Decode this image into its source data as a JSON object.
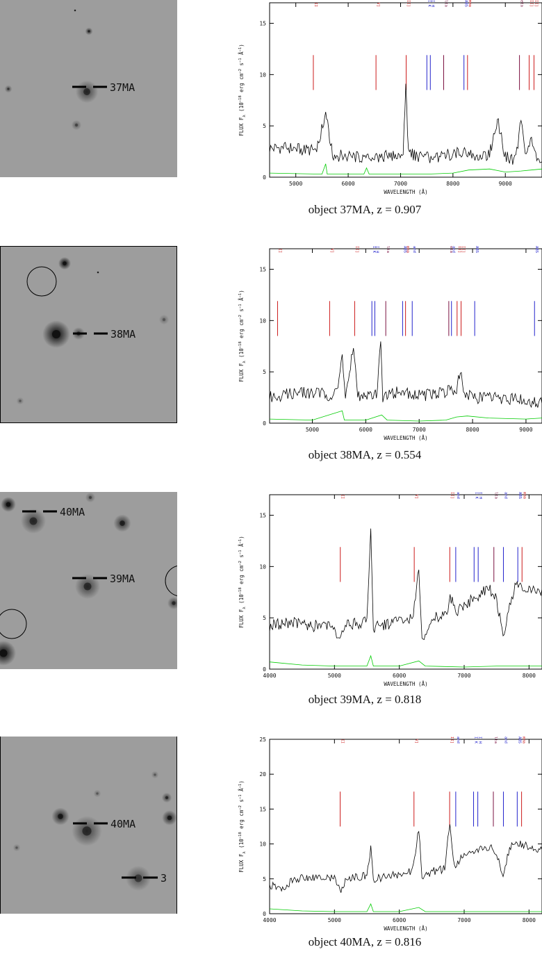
{
  "colors": {
    "emission": "#cc1a1a",
    "absorption": "#2222cc",
    "balmer": "#7a1040",
    "noise": "#00cc00",
    "spectrum": "#000000"
  },
  "panels": [
    {
      "label": "37MA",
      "caption": "object 37MA, z = 0.907",
      "stamp": {
        "markers": [
          {
            "text": "37MA"
          }
        ],
        "blobs": [
          [
            125,
            132,
            9,
            0.6
          ],
          [
            128,
            45,
            3,
            0.7
          ],
          [
            108,
            15,
            1,
            1.0
          ],
          [
            12,
            128,
            3,
            0.5
          ],
          [
            110,
            180,
            4,
            0.4
          ]
        ],
        "circles": []
      },
      "chart_data": {
        "type": "line",
        "xlabel": "WAVELENGTH (Å)",
        "xlim": [
          4500,
          9700
        ],
        "ylim": [
          0,
          17
        ],
        "xticks": [
          5000,
          6000,
          7000,
          8000,
          9000
        ],
        "yticks": [
          0,
          5,
          10,
          15
        ],
        "series": [
          {
            "role": "spectrum",
            "x": [
              4500,
              4800,
              5100,
              5400,
              5570,
              5700,
              6000,
              6300,
              6600,
              6900,
              7050,
              7100,
              7150,
              7300,
              7500,
              7700,
              7900,
              8100,
              8300,
              8500,
              8700,
              8850,
              9000,
              9200,
              9300,
              9400,
              9500,
              9600,
              9700
            ],
            "y": [
              2.8,
              2.9,
              2.7,
              2.6,
              6.2,
              2.2,
              2.0,
              1.9,
              2.0,
              2.1,
              2.4,
              9.0,
              2.3,
              2.1,
              1.9,
              1.8,
              2.2,
              2.4,
              2.3,
              2.1,
              2.2,
              5.6,
              2.0,
              1.7,
              5.4,
              1.9,
              3.7,
              1.6,
              1.5
            ]
          },
          {
            "role": "noise",
            "x": [
              4500,
              5500,
              5570,
              5600,
              6300,
              6350,
              6400,
              7000,
              7500,
              8000,
              8300,
              8700,
              9000,
              9300,
              9700
            ],
            "y": [
              0.4,
              0.3,
              1.3,
              0.3,
              0.3,
              0.9,
              0.3,
              0.3,
              0.3,
              0.4,
              0.7,
              0.8,
              0.5,
              0.6,
              0.8
            ]
          }
        ],
        "lines": [
          {
            "name": "MG II",
            "x": 5335,
            "kind": "emission"
          },
          {
            "name": "[NE V]",
            "x": 6531,
            "kind": "emission"
          },
          {
            "name": "[O II]",
            "x": 7107,
            "kind": "emission"
          },
          {
            "name": "CA II K",
            "x": 7502,
            "kind": "absorption"
          },
          {
            "name": "CA II H",
            "x": 7568,
            "kind": "absorption"
          },
          {
            "name": "H-delta",
            "x": 7823,
            "kind": "balmer"
          },
          {
            "name": "CH G ABS",
            "x": 8210,
            "kind": "absorption"
          },
          {
            "name": "H-gamma",
            "x": 8278,
            "kind": "emission"
          },
          {
            "name": "H-beta",
            "x": 9270,
            "kind": "balmer"
          },
          {
            "name": "[O III]",
            "x": 9455,
            "kind": "emission"
          },
          {
            "name": "[O III]",
            "x": 9547,
            "kind": "emission"
          }
        ]
      }
    },
    {
      "label": "38MA",
      "caption": "object 38MA, z = 0.554",
      "stamp": {
        "markers": [
          {
            "text": "38MA"
          }
        ],
        "blobs": [
          [
            80,
            126,
            11,
            1.0
          ],
          [
            92,
            24,
            5,
            1.0
          ],
          [
            112,
            125,
            5,
            0.6
          ],
          [
            140,
            37,
            1,
            1.0
          ],
          [
            235,
            105,
            4,
            0.3
          ],
          [
            28,
            222,
            3,
            0.3
          ]
        ],
        "circles": [
          [
            59,
            50,
            21
          ]
        ]
      },
      "chart_data": {
        "type": "line",
        "xlabel": "WAVELENGTH (Å)",
        "xlim": [
          4200,
          9300
        ],
        "ylim": [
          0,
          17
        ],
        "xticks": [
          5000,
          6000,
          7000,
          8000,
          9000
        ],
        "yticks": [
          0,
          5,
          10,
          15
        ],
        "series": [
          {
            "role": "spectrum",
            "x": [
              4200,
              4500,
              4800,
              5100,
              5400,
              5500,
              5560,
              5620,
              5770,
              5850,
              6100,
              6200,
              6280,
              6320,
              6500,
              6800,
              7000,
              7300,
              7500,
              7700,
              7770,
              7850,
              8000,
              8200,
              8400,
              8600,
              8800,
              9000,
              9200,
              9300
            ],
            "y": [
              2.5,
              2.8,
              3.0,
              2.9,
              2.7,
              4.0,
              6.5,
              2.4,
              7.5,
              2.6,
              2.5,
              2.8,
              7.5,
              2.6,
              3.0,
              2.9,
              2.7,
              2.8,
              3.1,
              3.3,
              5.4,
              2.8,
              2.6,
              2.4,
              2.5,
              2.3,
              2.4,
              2.2,
              2.0,
              1.9
            ]
          },
          {
            "role": "noise",
            "x": [
              4200,
              5000,
              5560,
              5600,
              6000,
              6300,
              6400,
              7000,
              7500,
              7700,
              7900,
              8300,
              9000,
              9300
            ],
            "y": [
              0.4,
              0.3,
              1.2,
              0.3,
              0.3,
              0.8,
              0.3,
              0.2,
              0.3,
              0.6,
              0.7,
              0.5,
              0.4,
              0.5
            ]
          }
        ],
        "lines": [
          {
            "name": "MG II",
            "x": 4349,
            "kind": "emission"
          },
          {
            "name": "[NE V]",
            "x": 5324,
            "kind": "emission"
          },
          {
            "name": "[O II]",
            "x": 5793,
            "kind": "emission"
          },
          {
            "name": "CA II K",
            "x": 6115,
            "kind": "absorption"
          },
          {
            "name": "CA II H",
            "x": 6170,
            "kind": "absorption"
          },
          {
            "name": "H-delta",
            "x": 6375,
            "kind": "balmer"
          },
          {
            "name": "CH G ABS",
            "x": 6690,
            "kind": "absorption"
          },
          {
            "name": "H-gamma",
            "x": 6745,
            "kind": "emission"
          },
          {
            "name": "B-Band",
            "x": 6870,
            "kind": "absorption"
          },
          {
            "name": "H-beta",
            "x": 7555,
            "kind": "balmer"
          },
          {
            "name": "A-Band",
            "x": 7605,
            "kind": "absorption"
          },
          {
            "name": "[O III]",
            "x": 7710,
            "kind": "emission"
          },
          {
            "name": "[O III]",
            "x": 7785,
            "kind": "emission"
          },
          {
            "name": "MG I ABS",
            "x": 8040,
            "kind": "absorption"
          },
          {
            "name": "NA D ABS",
            "x": 9160,
            "kind": "absorption"
          }
        ]
      }
    },
    {
      "label": "39MA",
      "caption": "object 39MA, z = 0.818",
      "stamp": {
        "markers": [
          {
            "text": "40MA"
          },
          {
            "text": "39MA"
          }
        ],
        "blobs": [
          [
            126,
            136,
            10,
            0.6
          ],
          [
            48,
            42,
            10,
            0.6
          ],
          [
            12,
            18,
            6,
            1.0
          ],
          [
            176,
            45,
            7,
            0.7
          ],
          [
            5,
            232,
            10,
            1.0
          ],
          [
            250,
            160,
            5,
            0.6
          ],
          [
            130,
            8,
            4,
            0.4
          ]
        ],
        "circles": [
          [
            17,
            190,
            21
          ],
          [
            260,
            128,
            22
          ]
        ]
      },
      "chart_data": {
        "type": "line",
        "xlabel": "WAVELENGTH (Å)",
        "xlim": [
          4000,
          8200
        ],
        "ylim": [
          0,
          17
        ],
        "xticks": [
          4000,
          5000,
          6000,
          7000,
          8000
        ],
        "yticks": [
          0,
          5,
          10,
          15
        ],
        "series": [
          {
            "role": "spectrum",
            "x": [
              4000,
              4300,
              4600,
              4900,
              5100,
              5200,
              5500,
              5560,
              5600,
              5900,
              6200,
              6300,
              6350,
              6500,
              6700,
              6800,
              6900,
              7000,
              7200,
              7400,
              7500,
              7600,
              7700,
              7800,
              8000,
              8200
            ],
            "y": [
              4.2,
              4.6,
              4.3,
              4.1,
              3.0,
              4.4,
              4.5,
              14.0,
              4.0,
              4.6,
              4.9,
              9.5,
              2.5,
              4.8,
              5.4,
              7.0,
              5.5,
              6.2,
              7.2,
              7.8,
              6.8,
              3.0,
              6.5,
              8.2,
              7.6,
              7.8
            ]
          },
          {
            "role": "noise",
            "x": [
              4000,
              4500,
              5000,
              5500,
              5560,
              5600,
              6000,
              6300,
              6400,
              7000,
              7500,
              8000,
              8200
            ],
            "y": [
              0.7,
              0.4,
              0.3,
              0.3,
              1.3,
              0.3,
              0.3,
              0.8,
              0.3,
              0.2,
              0.3,
              0.3,
              0.3
            ]
          }
        ],
        "lines": [
          {
            "name": "MG II",
            "x": 5090,
            "kind": "emission"
          },
          {
            "name": "[NE V]",
            "x": 6230,
            "kind": "emission"
          },
          {
            "name": "[O II]",
            "x": 6778,
            "kind": "emission"
          },
          {
            "name": "B-Band",
            "x": 6870,
            "kind": "absorption"
          },
          {
            "name": "CA II K",
            "x": 7153,
            "kind": "absorption"
          },
          {
            "name": "CA II H",
            "x": 7216,
            "kind": "absorption"
          },
          {
            "name": "H-delta",
            "x": 7458,
            "kind": "balmer"
          },
          {
            "name": "A-Band",
            "x": 7605,
            "kind": "absorption"
          },
          {
            "name": "CH G ABS",
            "x": 7827,
            "kind": "absorption"
          },
          {
            "name": "H-gamma",
            "x": 7892,
            "kind": "emission"
          }
        ]
      }
    },
    {
      "label": "40MA",
      "caption": "object 40MA, z = 0.816",
      "stamp": {
        "markers": [
          {
            "text": "40MA"
          },
          {
            "text": "3"
          }
        ],
        "blobs": [
          [
            124,
            136,
            12,
            0.6
          ],
          [
            86,
            115,
            7,
            0.8
          ],
          [
            198,
            204,
            10,
            0.5
          ],
          [
            243,
            117,
            6,
            0.8
          ],
          [
            239,
            88,
            4,
            0.6
          ],
          [
            222,
            55,
            3,
            0.3
          ],
          [
            23,
            160,
            3,
            0.3
          ],
          [
            139,
            82,
            3,
            0.3
          ]
        ],
        "circles": []
      },
      "chart_data": {
        "type": "line",
        "xlabel": "WAVELENGTH (Å)",
        "xlim": [
          4000,
          8200
        ],
        "ylim": [
          0,
          25
        ],
        "xticks": [
          4000,
          5000,
          6000,
          7000,
          8000
        ],
        "yticks": [
          0,
          5,
          10,
          15,
          20,
          25
        ],
        "series": [
          {
            "role": "spectrum",
            "x": [
              4000,
              4200,
              4400,
              4700,
              5000,
              5100,
              5200,
              5500,
              5560,
              5600,
              6000,
              6200,
              6300,
              6350,
              6500,
              6700,
              6780,
              6850,
              7000,
              7200,
              7400,
              7500,
              7600,
              7700,
              7800,
              8000,
              8200
            ],
            "y": [
              4.0,
              3.6,
              5.0,
              5.2,
              5.0,
              3.0,
              5.2,
              5.4,
              9.6,
              5.0,
              5.6,
              6.2,
              12.0,
              5.4,
              6.0,
              6.4,
              13.2,
              6.8,
              8.4,
              9.0,
              9.6,
              8.8,
              5.0,
              9.4,
              10.4,
              9.6,
              9.2
            ]
          },
          {
            "role": "noise",
            "x": [
              4000,
              4500,
              5000,
              5500,
              5560,
              5600,
              6000,
              6300,
              6400,
              7000,
              7500,
              8000,
              8200
            ],
            "y": [
              0.7,
              0.4,
              0.3,
              0.3,
              1.4,
              0.3,
              0.3,
              0.9,
              0.3,
              0.3,
              0.3,
              0.3,
              0.3
            ]
          }
        ],
        "lines": [
          {
            "name": "MG II",
            "x": 5088,
            "kind": "emission"
          },
          {
            "name": "[NE V]",
            "x": 6226,
            "kind": "emission"
          },
          {
            "name": "[O II]",
            "x": 6776,
            "kind": "emission"
          },
          {
            "name": "B-Band",
            "x": 6870,
            "kind": "absorption"
          },
          {
            "name": "CA II K",
            "x": 7145,
            "kind": "absorption"
          },
          {
            "name": "CA II H",
            "x": 7210,
            "kind": "absorption"
          },
          {
            "name": "H-delta",
            "x": 7450,
            "kind": "balmer"
          },
          {
            "name": "A-Band",
            "x": 7605,
            "kind": "absorption"
          },
          {
            "name": "CH G ABS",
            "x": 7818,
            "kind": "absorption"
          },
          {
            "name": "H-gamma",
            "x": 7885,
            "kind": "emission"
          }
        ]
      }
    }
  ]
}
